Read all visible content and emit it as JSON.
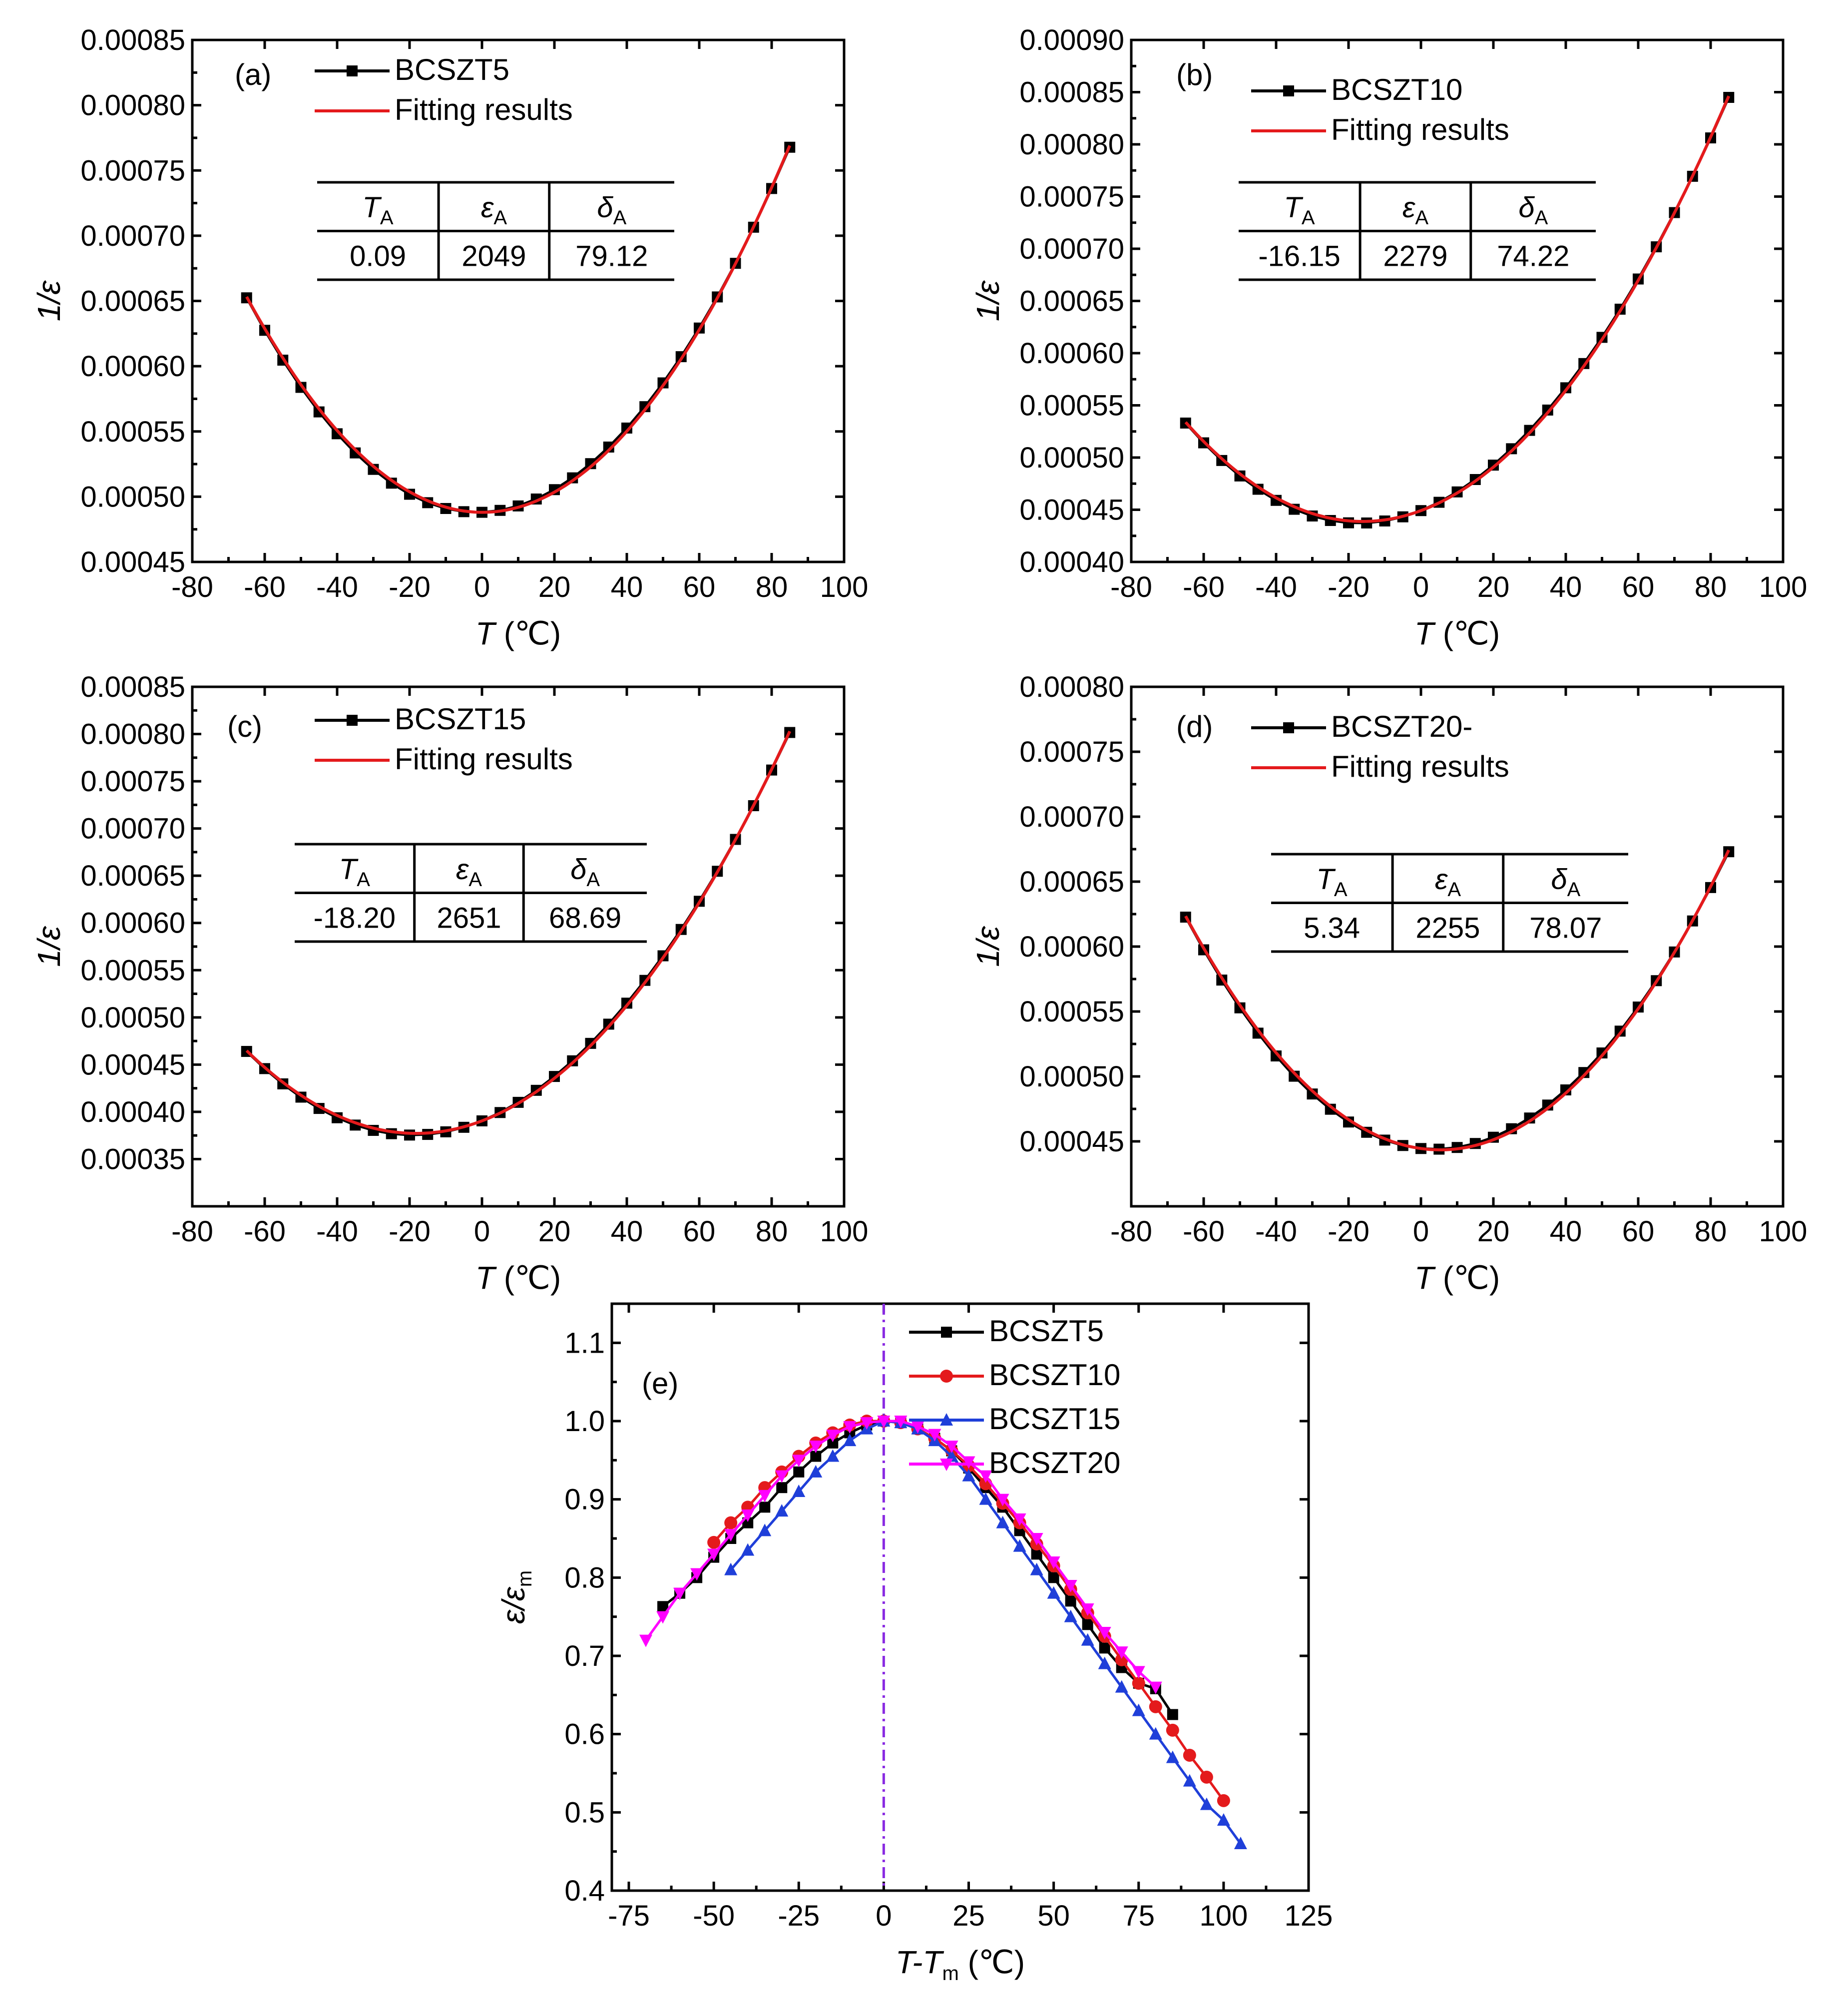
{
  "chart_data": [
    {
      "type": "line",
      "panel": "(a)",
      "xlabel": "T",
      "xlabel_unit": "(℃)",
      "ylabel": "1/ε",
      "xlim": [
        -80,
        100
      ],
      "ylim": [
        0.00045,
        0.00085
      ],
      "xticks": [
        -80,
        -60,
        -40,
        -20,
        0,
        20,
        40,
        60,
        80,
        100
      ],
      "xtick_labels": [
        "-80",
        "-60",
        "-40",
        "-20",
        "0",
        "20",
        "40",
        "60",
        "80",
        "100"
      ],
      "yticks": [
        0.00045,
        0.0005,
        0.00055,
        0.0006,
        0.00065,
        0.0007,
        0.00075,
        0.0008,
        0.00085
      ],
      "ytick_labels": [
        "0.00045",
        "0.00050",
        "0.00055",
        "0.00060",
        "0.00065",
        "0.00070",
        "0.00075",
        "0.00080",
        "0.00085"
      ],
      "legend": [
        "BCSZT5",
        "Fitting results"
      ],
      "table": {
        "headers": [
          "T",
          "ε",
          "δ"
        ],
        "header_sub": "A",
        "values": [
          "0.09",
          "2049",
          "79.12"
        ]
      },
      "series": [
        {
          "name": "BCSZT5",
          "color": "#000000",
          "marker": "square",
          "T_A": 0.09,
          "eps_A": 2049,
          "delta_A": 79.12,
          "noise": 2.5e-06,
          "x_range": [
            -65,
            85
          ]
        },
        {
          "name": "Fitting results",
          "color": "#e41a1c",
          "marker": "none",
          "T_A": 0.09,
          "eps_A": 2049,
          "delta_A": 79.12,
          "x_range": [
            -65,
            85
          ]
        }
      ]
    },
    {
      "type": "line",
      "panel": "(b)",
      "xlabel": "T",
      "xlabel_unit": "(℃)",
      "ylabel": "1/ε",
      "xlim": [
        -80,
        100
      ],
      "ylim": [
        0.0004,
        0.0009
      ],
      "xticks": [
        -80,
        -60,
        -40,
        -20,
        0,
        20,
        40,
        60,
        80,
        100
      ],
      "xtick_labels": [
        "-80",
        "-60",
        "-40",
        "-20",
        "0",
        "20",
        "40",
        "60",
        "80",
        "100"
      ],
      "yticks": [
        0.0004,
        0.00045,
        0.0005,
        0.00055,
        0.0006,
        0.00065,
        0.0007,
        0.00075,
        0.0008,
        0.00085,
        0.0009
      ],
      "ytick_labels": [
        "0.00040",
        "0.00045",
        "0.00050",
        "0.00055",
        "0.00060",
        "0.00065",
        "0.00070",
        "0.00075",
        "0.00080",
        "0.00085",
        "0.00090"
      ],
      "legend": [
        "BCSZT10",
        "Fitting results"
      ],
      "table": {
        "headers": [
          "T",
          "ε",
          "δ"
        ],
        "header_sub": "A",
        "values": [
          "-16.15",
          "2279",
          "74.22"
        ]
      },
      "series": [
        {
          "name": "BCSZT10",
          "color": "#000000",
          "marker": "square",
          "T_A": -16.15,
          "eps_A": 2279,
          "delta_A": 74.22,
          "noise": 2.5e-06,
          "x_range": [
            -65,
            85
          ]
        },
        {
          "name": "Fitting results",
          "color": "#e41a1c",
          "marker": "none",
          "T_A": -16.15,
          "eps_A": 2279,
          "delta_A": 74.22,
          "x_range": [
            -65,
            85
          ]
        }
      ]
    },
    {
      "type": "line",
      "panel": "(c)",
      "xlabel": "T",
      "xlabel_unit": "(℃)",
      "ylabel": "1/ε",
      "xlim": [
        -80,
        100
      ],
      "ylim": [
        0.0003,
        0.00085
      ],
      "xticks": [
        -80,
        -60,
        -40,
        -20,
        0,
        20,
        40,
        60,
        80,
        100
      ],
      "xtick_labels": [
        "-80",
        "-60",
        "-40",
        "-20",
        "0",
        "20",
        "40",
        "60",
        "80",
        "100"
      ],
      "yticks": [
        0.00035,
        0.0004,
        0.00045,
        0.0005,
        0.00055,
        0.0006,
        0.00065,
        0.0007,
        0.00075,
        0.0008,
        0.00085
      ],
      "ytick_labels": [
        "0.00035",
        "0.00040",
        "0.00045",
        "0.00050",
        "0.00055",
        "0.00060",
        "0.00065",
        "0.00070",
        "0.00075",
        "0.00080",
        "0.00085"
      ],
      "legend": [
        "BCSZT15",
        "Fitting results"
      ],
      "table": {
        "headers": [
          "T",
          "ε",
          "δ"
        ],
        "header_sub": "A",
        "values": [
          "-18.20",
          "2651",
          "68.69"
        ]
      },
      "series": [
        {
          "name": "BCSZT15",
          "color": "#000000",
          "marker": "square",
          "T_A": -18.2,
          "eps_A": 2651,
          "delta_A": 68.69,
          "noise": 2.5e-06,
          "x_range": [
            -65,
            85
          ]
        },
        {
          "name": "Fitting results",
          "color": "#e41a1c",
          "marker": "none",
          "T_A": -18.2,
          "eps_A": 2651,
          "delta_A": 68.69,
          "x_range": [
            -65,
            85
          ]
        }
      ]
    },
    {
      "type": "line",
      "panel": "(d)",
      "xlabel": "T",
      "xlabel_unit": "(℃)",
      "ylabel": "1/ε",
      "xlim": [
        -80,
        100
      ],
      "ylim": [
        0.0004,
        0.0008
      ],
      "xticks": [
        -80,
        -60,
        -40,
        -20,
        0,
        20,
        40,
        60,
        80,
        100
      ],
      "xtick_labels": [
        "-80",
        "-60",
        "-40",
        "-20",
        "0",
        "20",
        "40",
        "60",
        "80",
        "100"
      ],
      "yticks": [
        0.00045,
        0.0005,
        0.00055,
        0.0006,
        0.00065,
        0.0007,
        0.00075,
        0.0008
      ],
      "ytick_labels": [
        "0.00045",
        "0.00050",
        "0.00055",
        "0.00060",
        "0.00065",
        "0.00070",
        "0.00075",
        "0.00080"
      ],
      "legend": [
        "BCSZT20-",
        "Fitting results"
      ],
      "table": {
        "headers": [
          "T",
          "ε",
          "δ"
        ],
        "header_sub": "A",
        "values": [
          "5.34",
          "2255",
          "78.07"
        ]
      },
      "series": [
        {
          "name": "BCSZT20-",
          "color": "#000000",
          "marker": "square",
          "T_A": 5.34,
          "eps_A": 2255,
          "delta_A": 78.07,
          "noise": 2.5e-06,
          "x_range": [
            -65,
            85
          ]
        },
        {
          "name": "Fitting results",
          "color": "#e41a1c",
          "marker": "none",
          "T_A": 5.34,
          "eps_A": 2255,
          "delta_A": 78.07,
          "x_range": [
            -65,
            85
          ]
        }
      ]
    },
    {
      "type": "line",
      "panel": "(e)",
      "xlabel": "T-T",
      "xlabel_sub": "m",
      "xlabel_unit": "(℃)",
      "ylabel": "ε/ε",
      "ylabel_sub": "m",
      "xlim": [
        -80,
        125
      ],
      "ylim": [
        0.4,
        1.15
      ],
      "xticks": [
        -75,
        -50,
        -25,
        0,
        25,
        50,
        75,
        100,
        125
      ],
      "xtick_labels": [
        "-75",
        "-50",
        "-25",
        "0",
        "25",
        "50",
        "75",
        "100",
        "125"
      ],
      "yticks": [
        0.4,
        0.5,
        0.6,
        0.7,
        0.8,
        0.9,
        1.0,
        1.1
      ],
      "ytick_labels": [
        "0.4",
        "0.5",
        "0.6",
        "0.7",
        "0.8",
        "0.9",
        "1.0",
        "1.1"
      ],
      "reference_line_x": 0,
      "legend": [
        "BCSZT5",
        "BCSZT10",
        "BCSZT15",
        "BCSZT20"
      ],
      "series": [
        {
          "name": "BCSZT5",
          "color": "#000000",
          "marker": "square",
          "x": [
            -65,
            -60,
            -55,
            -50,
            -45,
            -40,
            -35,
            -30,
            -25,
            -20,
            -15,
            -10,
            -5,
            0,
            5,
            10,
            15,
            20,
            25,
            30,
            35,
            40,
            45,
            50,
            55,
            60,
            65,
            70,
            75,
            80,
            85
          ],
          "y": [
            0.763,
            0.78,
            0.8,
            0.826,
            0.85,
            0.87,
            0.89,
            0.915,
            0.935,
            0.955,
            0.972,
            0.985,
            0.995,
            1.0,
            0.998,
            0.99,
            0.978,
            0.962,
            0.94,
            0.915,
            0.89,
            0.86,
            0.83,
            0.8,
            0.77,
            0.74,
            0.71,
            0.685,
            0.665,
            0.658,
            0.625
          ]
        },
        {
          "name": "BCSZT10",
          "color": "#e41a1c",
          "marker": "circle",
          "x": [
            -50,
            -45,
            -40,
            -35,
            -30,
            -25,
            -20,
            -15,
            -10,
            -5,
            0,
            5,
            10,
            15,
            20,
            25,
            30,
            35,
            40,
            45,
            50,
            55,
            60,
            65,
            70,
            75,
            80,
            85,
            90,
            95,
            100
          ],
          "y": [
            0.845,
            0.87,
            0.89,
            0.915,
            0.935,
            0.955,
            0.972,
            0.985,
            0.995,
            1.0,
            1.0,
            0.998,
            0.99,
            0.978,
            0.962,
            0.943,
            0.92,
            0.895,
            0.87,
            0.843,
            0.815,
            0.785,
            0.755,
            0.725,
            0.695,
            0.665,
            0.635,
            0.605,
            0.573,
            0.545,
            0.515
          ]
        },
        {
          "name": "BCSZT15",
          "color": "#1f3fd9",
          "marker": "triangle-up",
          "x": [
            -45,
            -40,
            -35,
            -30,
            -25,
            -20,
            -15,
            -10,
            -5,
            0,
            5,
            10,
            15,
            20,
            25,
            30,
            35,
            40,
            45,
            50,
            55,
            60,
            65,
            70,
            75,
            80,
            85,
            90,
            95,
            100,
            105
          ],
          "y": [
            0.81,
            0.835,
            0.86,
            0.885,
            0.91,
            0.935,
            0.955,
            0.975,
            0.99,
            1.0,
            0.998,
            0.99,
            0.975,
            0.955,
            0.93,
            0.9,
            0.87,
            0.84,
            0.81,
            0.78,
            0.75,
            0.72,
            0.69,
            0.66,
            0.63,
            0.6,
            0.57,
            0.54,
            0.51,
            0.49,
            0.46
          ]
        },
        {
          "name": "BCSZT20",
          "color": "#ff00ff",
          "marker": "triangle-down",
          "x": [
            -70,
            -65,
            -60,
            -55,
            -50,
            -45,
            -40,
            -35,
            -30,
            -25,
            -20,
            -15,
            -10,
            -5,
            0,
            5,
            10,
            15,
            20,
            25,
            30,
            35,
            40,
            45,
            50,
            55,
            60,
            65,
            70,
            75,
            80
          ],
          "y": [
            0.72,
            0.75,
            0.78,
            0.805,
            0.83,
            0.855,
            0.88,
            0.905,
            0.93,
            0.95,
            0.968,
            0.982,
            0.993,
            0.998,
            1.0,
            1.0,
            0.993,
            0.983,
            0.968,
            0.948,
            0.93,
            0.9,
            0.875,
            0.85,
            0.82,
            0.79,
            0.76,
            0.73,
            0.705,
            0.68,
            0.66
          ]
        }
      ]
    }
  ]
}
